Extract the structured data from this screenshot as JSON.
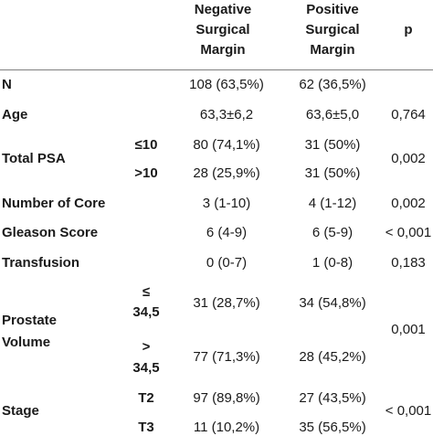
{
  "header": {
    "negative": [
      "Negative",
      "Surgical",
      "Margin"
    ],
    "positive": [
      "Positive",
      "Surgical",
      "Margin"
    ],
    "p": "p"
  },
  "rows": {
    "n": {
      "label": "N",
      "neg": "108 (63,5%)",
      "pos": "62 (36,5%)"
    },
    "age": {
      "label": "Age",
      "neg": "63,3±6,2",
      "pos": "63,6±5,0",
      "p": "0,764"
    },
    "psa": {
      "label": "Total PSA",
      "sub1": "≤10",
      "neg1": "80 (74,1%)",
      "pos1": "31 (50%)",
      "sub2": ">10",
      "neg2": "28 (25,9%)",
      "pos2": "31 (50%)",
      "p": "0,002"
    },
    "cores": {
      "label": "Number of Core",
      "neg": "3 (1-10)",
      "pos": "4 (1-12)",
      "p": "0,002"
    },
    "gleason": {
      "label": "Gleason Score",
      "neg": "6 (4-9)",
      "pos": "6 (5-9)",
      "p": "< 0,001"
    },
    "transfusion": {
      "label": "Transfusion",
      "neg": "0 (0-7)",
      "pos": "1 (0-8)",
      "p": "0,183"
    },
    "volume": {
      "label1": "Prostate",
      "label2": "Volume",
      "sub1a": "≤",
      "sub1b": "34,5",
      "neg1": "31 (28,7%)",
      "pos1": "34 (54,8%)",
      "sub2a": ">",
      "sub2b": "34,5",
      "neg2": "77 (71,3%)",
      "pos2": "28 (45,2%)",
      "p": "0,001"
    },
    "stage": {
      "label": "Stage",
      "sub1": "T2",
      "neg1": "97 (89,8%)",
      "pos1": "27 (43,5%)",
      "sub2": "T3",
      "neg2": "11 (10,2%)",
      "pos2": "35 (56,5%)",
      "p": "< 0,001"
    }
  }
}
